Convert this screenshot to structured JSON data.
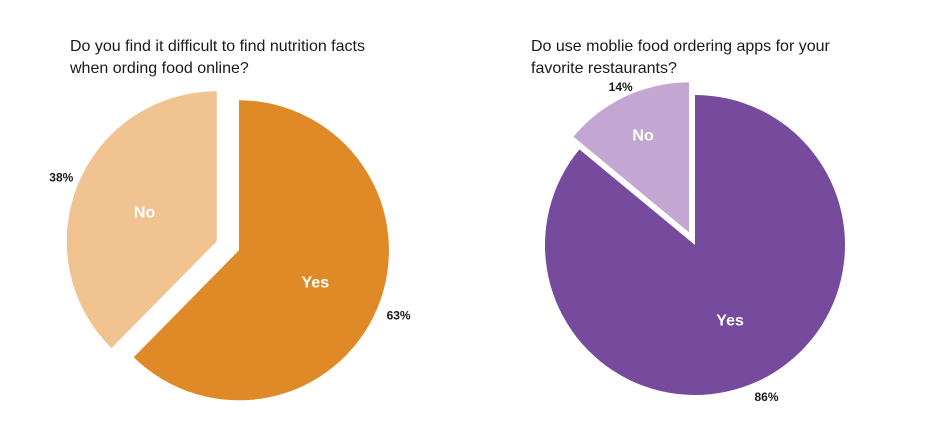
{
  "chart_data": [
    {
      "type": "pie",
      "title": "Do you find it difficult to find nutrition facts\nwhen ording food online?",
      "slices": [
        {
          "label": "Yes",
          "value": 63,
          "value_label": "63%",
          "color": "#e08a27"
        },
        {
          "label": "No",
          "value": 38,
          "value_label": "38%",
          "color": "#f0c391"
        }
      ]
    },
    {
      "type": "pie",
      "title": "Do use moblie food ordering apps for your\nfavorite restaurants?",
      "slices": [
        {
          "label": "Yes",
          "value": 86,
          "value_label": "86%",
          "color": "#764a9c"
        },
        {
          "label": "No",
          "value": 14,
          "value_label": "14%",
          "color": "#c3a6d1"
        }
      ]
    }
  ]
}
